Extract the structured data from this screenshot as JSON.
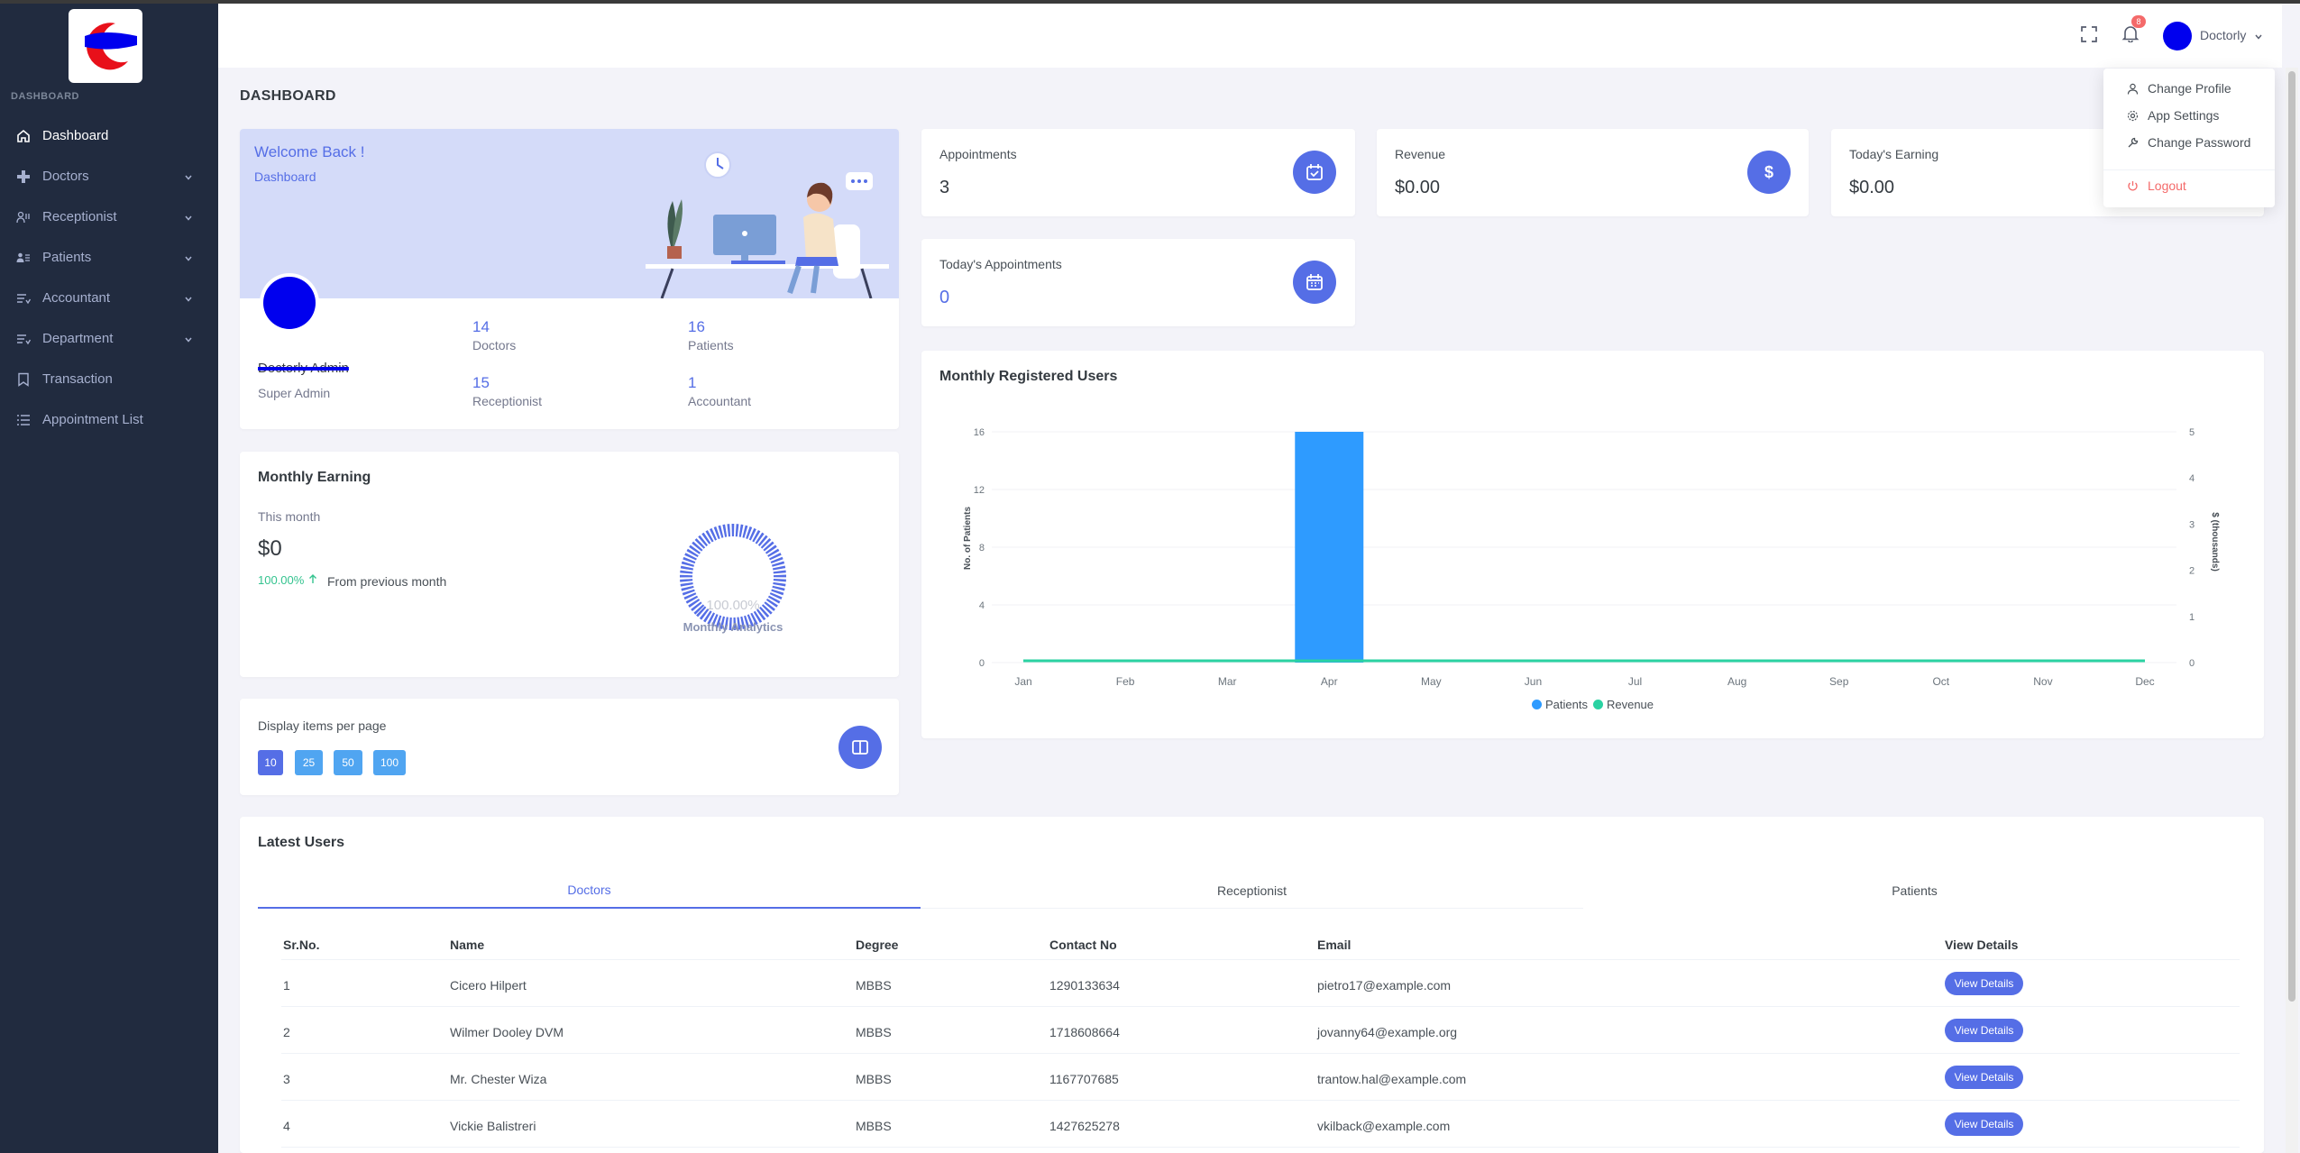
{
  "sidebar": {
    "heading": "DASHBOARD",
    "items": [
      {
        "label": "Dashboard",
        "icon": "home-icon"
      },
      {
        "label": "Doctors",
        "icon": "plus-icon"
      },
      {
        "label": "Receptionist",
        "icon": "user-desk-icon"
      },
      {
        "label": "Patients",
        "icon": "user-list-icon"
      },
      {
        "label": "Accountant",
        "icon": "list-icon"
      },
      {
        "label": "Department",
        "icon": "list-icon"
      },
      {
        "label": "Transaction",
        "icon": "bookmark-icon"
      },
      {
        "label": "Appointment List",
        "icon": "list-icon"
      }
    ]
  },
  "header": {
    "notification_count": "8",
    "user_name": "Doctorly"
  },
  "user_menu": {
    "change_profile": "Change Profile",
    "app_settings": "App Settings",
    "change_password": "Change Password",
    "logout": "Logout"
  },
  "page_title": "DASHBOARD",
  "welcome": {
    "title": "Welcome Back !",
    "subtitle": "Dashboard",
    "profile_name": "Doctorly Admin",
    "profile_role": "Super Admin",
    "stats": [
      {
        "value": "14",
        "label": "Doctors"
      },
      {
        "value": "16",
        "label": "Patients"
      },
      {
        "value": "15",
        "label": "Receptionist"
      },
      {
        "value": "1",
        "label": "Accountant"
      }
    ]
  },
  "mini_cards": {
    "appointments": {
      "label": "Appointments",
      "value": "3"
    },
    "revenue": {
      "label": "Revenue",
      "value": "$0.00"
    },
    "todays_earning": {
      "label": "Today's Earning",
      "value": "$0.00"
    },
    "todays_appointments": {
      "label": "Today's Appointments",
      "value": "0"
    }
  },
  "monthly_earning": {
    "title": "Monthly Earning",
    "period": "This month",
    "amount": "$0",
    "change": "100.00%",
    "change_text": "From previous month",
    "gauge_value": "100.00%",
    "gauge_label": "Monthly Analytics"
  },
  "per_page": {
    "title": "Display items per page",
    "options": [
      "10",
      "25",
      "50",
      "100"
    ]
  },
  "chart_data": {
    "type": "bar",
    "title": "Monthly Registered Users",
    "categories": [
      "Jan",
      "Feb",
      "Mar",
      "Apr",
      "May",
      "Jun",
      "Jul",
      "Aug",
      "Sep",
      "Oct",
      "Nov",
      "Dec"
    ],
    "series": [
      {
        "name": "Patients",
        "type": "bar",
        "axis": "left",
        "color": "#2e9bff",
        "values": [
          0,
          0,
          0,
          16,
          0,
          0,
          0,
          0,
          0,
          0,
          0,
          0
        ]
      },
      {
        "name": "Revenue",
        "type": "line",
        "axis": "right",
        "color": "#2ad2a2",
        "values": [
          0,
          0,
          0,
          0,
          0,
          0,
          0,
          0,
          0,
          0,
          0,
          0
        ]
      }
    ],
    "ylabel": "No. of Patients",
    "y2label": "$ (thousands)",
    "ylim": [
      0,
      16
    ],
    "yticks": [
      "0",
      "4",
      "8",
      "12",
      "16"
    ],
    "y2lim": [
      0,
      5
    ],
    "y2ticks": [
      "0",
      "1",
      "2",
      "3",
      "4",
      "5"
    ],
    "legend": "bottom-center",
    "grid": true
  },
  "latest_users": {
    "title": "Latest Users",
    "tabs": [
      "Doctors",
      "Receptionist",
      "Patients"
    ],
    "columns": [
      "Sr.No.",
      "Name",
      "Degree",
      "Contact No",
      "Email",
      "View Details"
    ],
    "button_label": "View Details",
    "rows": [
      {
        "sr": "1",
        "name": "Cicero Hilpert",
        "degree": "MBBS",
        "contact": "1290133634",
        "email": "pietro17@example.com"
      },
      {
        "sr": "2",
        "name": "Wilmer Dooley DVM",
        "degree": "MBBS",
        "contact": "1718608664",
        "email": "jovanny64@example.org"
      },
      {
        "sr": "3",
        "name": "Mr. Chester Wiza",
        "degree": "MBBS",
        "contact": "1167707685",
        "email": "trantow.hal@example.com"
      },
      {
        "sr": "4",
        "name": "Vickie Balistreri",
        "degree": "MBBS",
        "contact": "1427625278",
        "email": "vkilback@example.com"
      }
    ]
  }
}
